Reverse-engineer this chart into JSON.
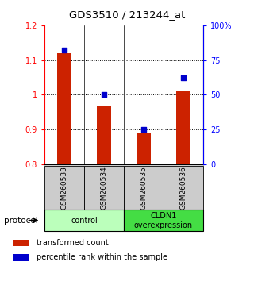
{
  "title": "GDS3510 / 213244_at",
  "samples": [
    "GSM260533",
    "GSM260534",
    "GSM260535",
    "GSM260536"
  ],
  "bar_values": [
    1.12,
    0.97,
    0.89,
    1.01
  ],
  "percentile_values": [
    82,
    50,
    25,
    62
  ],
  "bar_color": "#cc2200",
  "dot_color": "#0000cc",
  "ylim_left": [
    0.8,
    1.2
  ],
  "ylim_right": [
    0,
    100
  ],
  "yticks_left": [
    0.8,
    0.9,
    1.0,
    1.1,
    1.2
  ],
  "yticks_right": [
    0,
    25,
    50,
    75,
    100
  ],
  "ytick_labels_right": [
    "0",
    "25",
    "50",
    "75",
    "100%"
  ],
  "gridlines": [
    0.9,
    1.0,
    1.1
  ],
  "groups": [
    {
      "label": "control",
      "indices": [
        0,
        1
      ],
      "color": "#bbffbb"
    },
    {
      "label": "CLDN1\noverexpression",
      "indices": [
        2,
        3
      ],
      "color": "#44dd44"
    }
  ],
  "protocol_label": "protocol",
  "legend_bar_label": "transformed count",
  "legend_dot_label": "percentile rank within the sample",
  "bar_width": 0.35,
  "sample_bg_color": "#cccccc"
}
